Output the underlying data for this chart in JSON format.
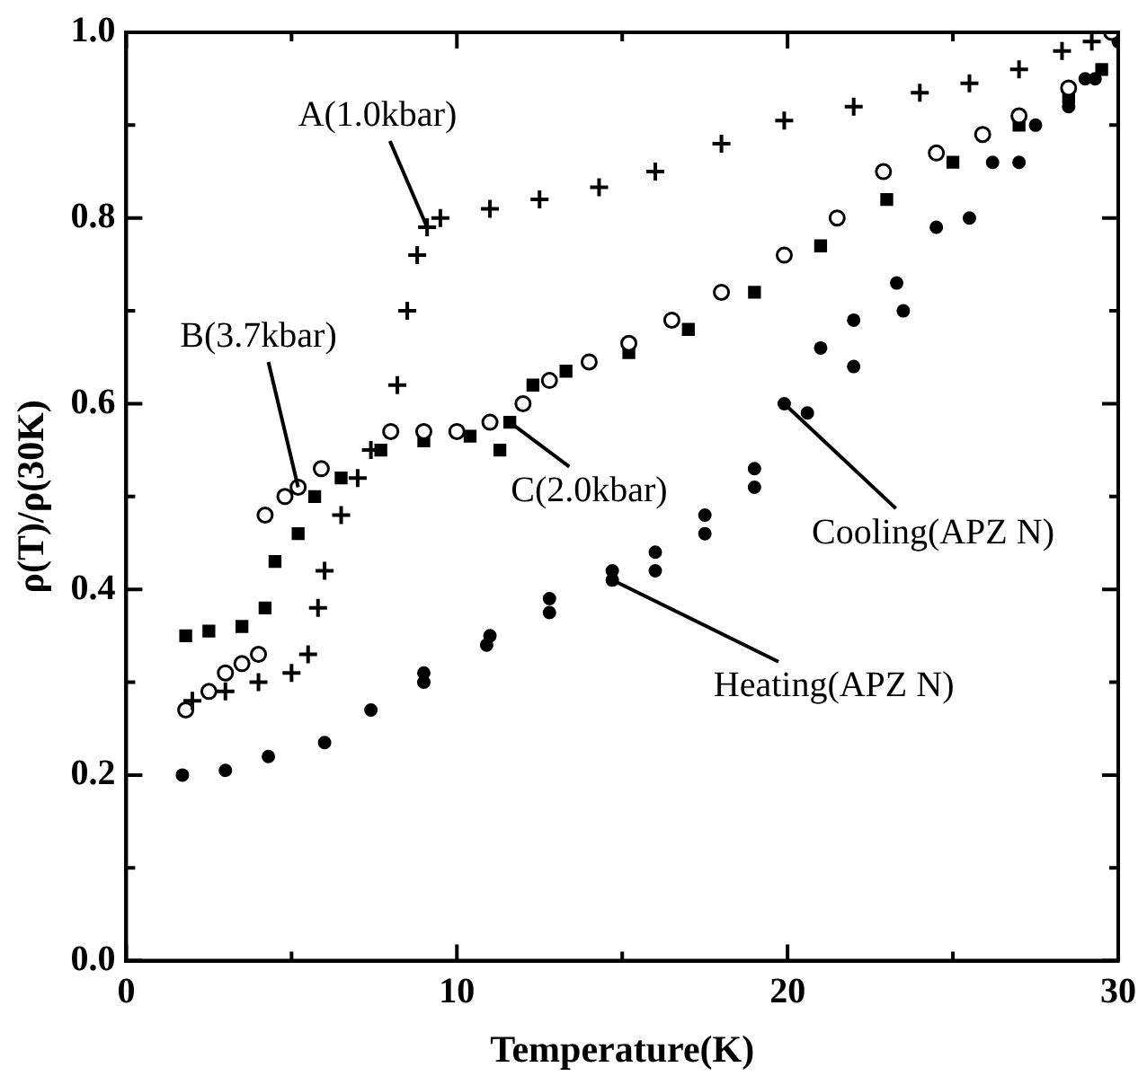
{
  "chart_data": {
    "type": "scatter",
    "xlabel": "Temperature(K)",
    "ylabel": "ρ(T)/ρ(30K)",
    "xlim": [
      0,
      30
    ],
    "ylim": [
      0,
      1
    ],
    "xticks": [
      0,
      {
        "value": 5,
        "label": null
      },
      10,
      {
        "value": 15,
        "label": null
      },
      20,
      {
        "value": 25,
        "label": null
      },
      30
    ],
    "yticks": [
      {
        "value": 0,
        "label": "0.0"
      },
      {
        "value": 0.1,
        "label": null
      },
      0.2,
      {
        "value": 0.3,
        "label": null
      },
      0.4,
      {
        "value": 0.5,
        "label": null
      },
      0.6,
      {
        "value": 0.7,
        "label": null
      },
      0.8,
      {
        "value": 0.9,
        "label": null
      },
      {
        "value": 1,
        "label": "1.0"
      }
    ],
    "grid": false,
    "legend": "right",
    "series": [
      {
        "name": "A(1.0kbar)",
        "color": "#000000",
        "marker": "cross",
        "x": [
          2,
          3,
          4,
          5,
          5.5,
          5.8,
          6,
          6.5,
          7,
          7.4,
          8.2,
          8.5,
          8.8,
          9.1,
          9.5,
          11,
          12.5,
          14.3,
          16,
          18,
          19.9,
          22,
          24,
          25.5,
          27,
          28.3,
          29.2
        ],
        "values": [
          0.28,
          0.29,
          0.3,
          0.31,
          0.33,
          0.38,
          0.42,
          0.48,
          0.52,
          0.55,
          0.62,
          0.7,
          0.76,
          0.79,
          0.8,
          0.81,
          0.82,
          0.833,
          0.85,
          0.88,
          0.905,
          0.92,
          0.935,
          0.945,
          0.96,
          0.98,
          0.99
        ]
      },
      {
        "name": "B(3.7kbar)",
        "color": "#000000",
        "marker": "circle",
        "x": [
          1.8,
          2.5,
          3,
          3.5,
          4,
          4.2,
          4.8,
          5.2,
          5.9,
          8,
          9,
          10,
          11,
          12,
          12.8,
          14,
          15.2,
          16.5,
          18,
          19.9,
          21.5,
          22.9,
          24.5,
          25.9,
          27,
          28.5,
          29.8
        ],
        "values": [
          0.27,
          0.29,
          0.31,
          0.32,
          0.33,
          0.48,
          0.5,
          0.51,
          0.53,
          0.57,
          0.57,
          0.57,
          0.58,
          0.6,
          0.625,
          0.645,
          0.665,
          0.69,
          0.72,
          0.76,
          0.8,
          0.85,
          0.87,
          0.89,
          0.91,
          0.94,
          1.0
        ]
      },
      {
        "name": "C(2.0kbar)",
        "color": "#000000",
        "marker": "square",
        "x": [
          1.8,
          2.5,
          3.5,
          4.2,
          4.5,
          5.2,
          5.7,
          6.5,
          7.7,
          9,
          10.4,
          11.3,
          11.6,
          12.3,
          13.3,
          15.2,
          17,
          19,
          21,
          23,
          25,
          27,
          28.5,
          29.5
        ],
        "values": [
          0.35,
          0.355,
          0.36,
          0.38,
          0.43,
          0.46,
          0.5,
          0.52,
          0.55,
          0.56,
          0.565,
          0.55,
          0.58,
          0.62,
          0.635,
          0.655,
          0.68,
          0.72,
          0.77,
          0.82,
          0.86,
          0.9,
          0.93,
          0.96
        ]
      },
      {
        "name": "Cooling(APZ N)",
        "color": "#000000",
        "marker": "circle",
        "x": [
          9,
          11,
          12.8,
          14.7,
          16,
          17.5,
          19,
          19.9,
          21,
          22,
          23.3,
          24.5,
          26.2,
          27.5,
          29,
          30
        ],
        "values": [
          0.31,
          0.35,
          0.39,
          0.42,
          0.44,
          0.48,
          0.53,
          0.6,
          0.66,
          0.69,
          0.73,
          0.79,
          0.86,
          0.9,
          0.95,
          0.99
        ]
      },
      {
        "name": "Heating(APZ N)",
        "color": "#000000",
        "marker": "circle",
        "x": [
          1.7,
          3,
          4.3,
          6,
          7.4,
          9,
          10.9,
          12.8,
          14.7,
          16,
          17.5,
          19,
          20.6,
          22,
          23.5,
          25.5,
          27,
          28.5,
          29.3
        ],
        "values": [
          0.2,
          0.205,
          0.22,
          0.235,
          0.27,
          0.3,
          0.34,
          0.375,
          0.41,
          0.42,
          0.46,
          0.51,
          0.59,
          0.64,
          0.7,
          0.8,
          0.86,
          0.92,
          0.95
        ]
      }
    ]
  }
}
